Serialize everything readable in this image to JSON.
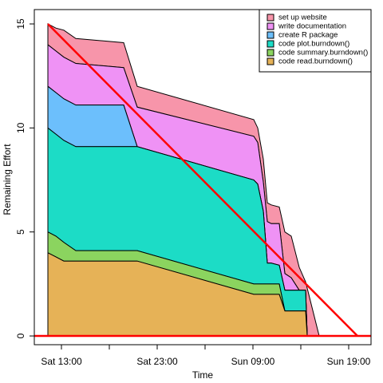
{
  "chart_data": {
    "type": "stacked_area",
    "x_label": "Time",
    "y_label": "Remaining Effort",
    "x": [
      "Sat 11:35",
      "Sat 12:25",
      "Sat 13:15",
      "Sat 14:30",
      "Sat 19:30",
      "Sat 20:55",
      "Sun 09:05",
      "Sun 09:30",
      "Sun 10:05",
      "Sun 10:30",
      "Sun 10:55",
      "Sun 11:45",
      "Sun 12:20",
      "Sun 13:00",
      "Sun 13:50",
      "Sun 14:30",
      "Sun 14:40",
      "Sun 15:55"
    ],
    "series": [
      {
        "name": "code read.burndown()",
        "color": "#e6b257",
        "values": [
          4.0,
          3.8,
          3.6,
          3.6,
          3.6,
          3.6,
          2.0,
          2.0,
          2.0,
          2.0,
          2.0,
          2.0,
          1.2,
          1.2,
          1.2,
          1.2,
          0,
          0
        ]
      },
      {
        "name": "code summary.burndown()",
        "color": "#8bd45f",
        "values": [
          1.0,
          1.0,
          0.9,
          0.5,
          0.5,
          0.5,
          0.5,
          0.5,
          0.5,
          0.5,
          0.5,
          0.5,
          0,
          0,
          0,
          0,
          0,
          0
        ]
      },
      {
        "name": "code plot.burndown()",
        "color": "#1cdcc6",
        "values": [
          5.0,
          4.9,
          4.9,
          5.0,
          5.0,
          5.0,
          5.0,
          4.8,
          3.5,
          1.0,
          1.0,
          0.9,
          1.0,
          1.0,
          1.0,
          1.0,
          0,
          0
        ]
      },
      {
        "name": "create R package",
        "color": "#6cbffc",
        "values": [
          2,
          2,
          2,
          2,
          2,
          0,
          0,
          0,
          0,
          0,
          0,
          0,
          0,
          0,
          0,
          0,
          0,
          0
        ]
      },
      {
        "name": "write documentation",
        "color": "#ef92f5",
        "values": [
          2,
          2,
          2,
          2,
          1.8,
          1.9,
          2.1,
          2.0,
          1.4,
          2.0,
          1.9,
          2.0,
          0.8,
          0.6,
          0,
          0,
          0,
          0
        ]
      },
      {
        "name": "set up website",
        "color": "#f795aa",
        "values": [
          1,
          1.1,
          1.3,
          1.2,
          1.2,
          1.0,
          0.8,
          0.7,
          1.1,
          0.9,
          0.9,
          0.8,
          2.0,
          2.0,
          1.1,
          0.4,
          2.3,
          0
        ]
      }
    ],
    "ideal_line": {
      "x": [
        "Sat 11:35",
        "Sun 19:55"
      ],
      "values": [
        15,
        0
      ],
      "color": "#ff0000"
    },
    "reference_line": {
      "value": 0,
      "color": "#ff0000"
    },
    "xlim": [
      "Sat 10:10",
      "Sun 21:20"
    ],
    "xticks": [
      "Sat 13:00",
      {
        "value": "Sat 18:00"
      },
      "Sat 23:00",
      {
        "value": "Sun 04:00"
      },
      "Sun 09:00",
      {
        "value": "Sun 14:00"
      },
      "Sun 19:00"
    ],
    "ylim": [
      -0.42,
      15.69
    ],
    "yticks": [
      0,
      5,
      10,
      15
    ],
    "legend": "top-right"
  }
}
